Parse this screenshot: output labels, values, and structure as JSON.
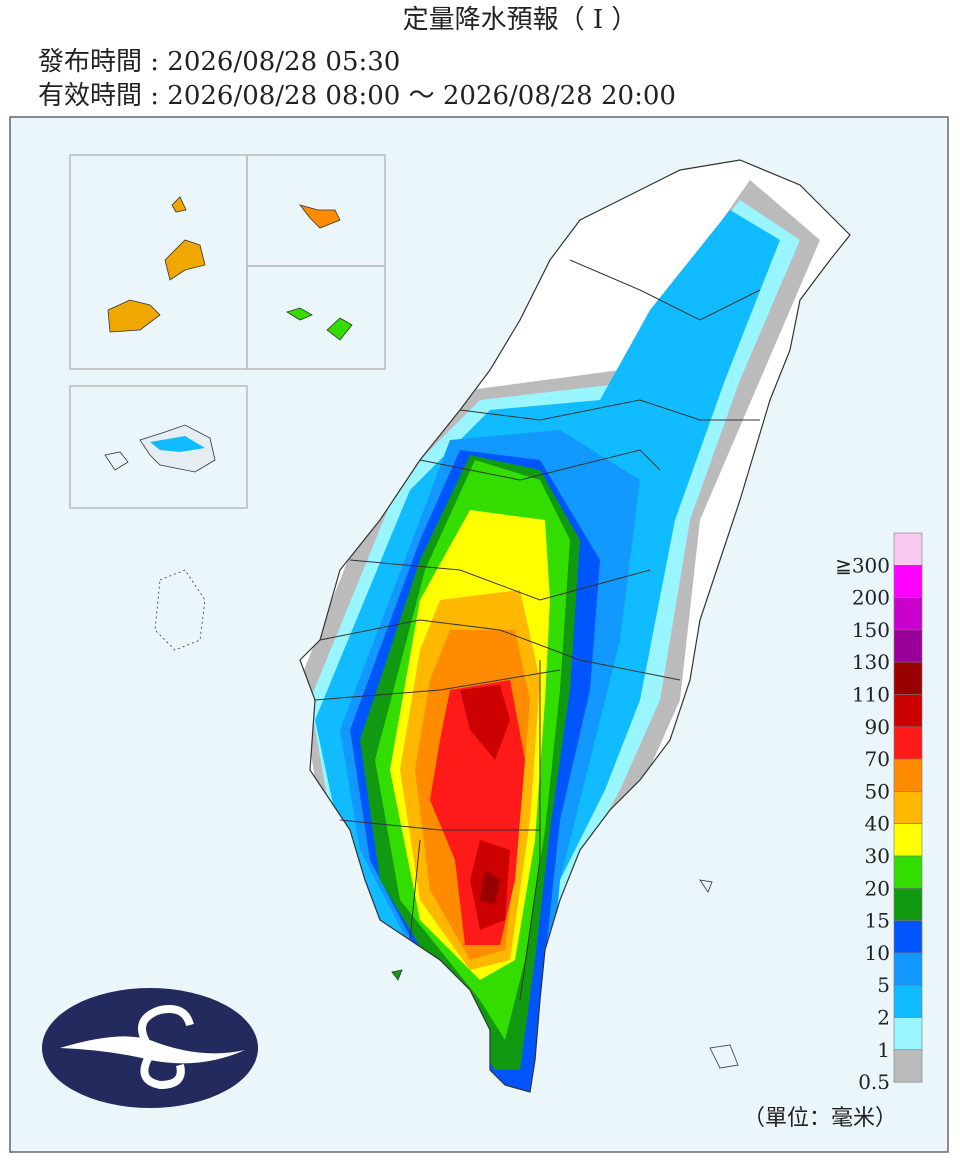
{
  "header": {
    "title": "定量降水預報（ I ）",
    "issued": "發布時間 : 2026/08/28 05:30",
    "valid": "有效時間 : 2026/08/28 08:00 ～ 2026/08/28 20:00"
  },
  "legend": {
    "items": [
      {
        "label": "≧300",
        "color": "#f8c8f0"
      },
      {
        "label": "200",
        "color": "#ff00ff"
      },
      {
        "label": "150",
        "color": "#cc00cc"
      },
      {
        "label": "130",
        "color": "#990099"
      },
      {
        "label": "110",
        "color": "#990000"
      },
      {
        "label": "90",
        "color": "#cc0000"
      },
      {
        "label": "70",
        "color": "#ff1a1a"
      },
      {
        "label": "50",
        "color": "#ff8c00"
      },
      {
        "label": "40",
        "color": "#ffb700"
      },
      {
        "label": "30",
        "color": "#ffff00"
      },
      {
        "label": "20",
        "color": "#33dd00"
      },
      {
        "label": "15",
        "color": "#119911"
      },
      {
        "label": "10",
        "color": "#0055ff"
      },
      {
        "label": "5",
        "color": "#1199ff"
      },
      {
        "label": "2",
        "color": "#11bbff"
      },
      {
        "label": "1",
        "color": "#99f5ff"
      },
      {
        "label": "0.5",
        "color": "#bbbbbb"
      }
    ],
    "unit": "（單位：毫米）"
  }
}
